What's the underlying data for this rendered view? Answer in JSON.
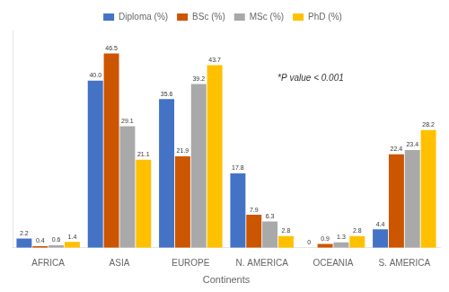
{
  "chart_data": {
    "type": "bar",
    "categories": [
      "AFRICA",
      "ASIA",
      "EUROPE",
      "N. AMERICA",
      "OCEANIA",
      "S. AMERICA"
    ],
    "series": [
      {
        "name": "Diploma (%)",
        "color": "#4472C4",
        "values": [
          2.2,
          40.0,
          35.6,
          17.8,
          0.0,
          4.4
        ],
        "value_labels": [
          "2.2",
          "40.0",
          "35.6",
          "17.8",
          "0",
          "4.4"
        ]
      },
      {
        "name": "BSc (%)",
        "color": "#CC5500",
        "values": [
          0.4,
          46.5,
          21.9,
          7.9,
          0.9,
          22.4
        ]
      },
      {
        "name": "MSc (%)",
        "color": "#A9A9A9",
        "values": [
          0.6,
          29.1,
          39.2,
          6.3,
          1.3,
          23.4
        ]
      },
      {
        "name": "PhD (%)",
        "color": "#FFC000",
        "values": [
          1.4,
          21.1,
          43.7,
          2.8,
          2.8,
          28.2
        ]
      }
    ],
    "xlabel": "Continents",
    "ylim": [
      0,
      52
    ],
    "annotation": "*P value < 0.001",
    "data_labels": true,
    "tick_labels": "x",
    "grid": false,
    "legend": "top"
  }
}
